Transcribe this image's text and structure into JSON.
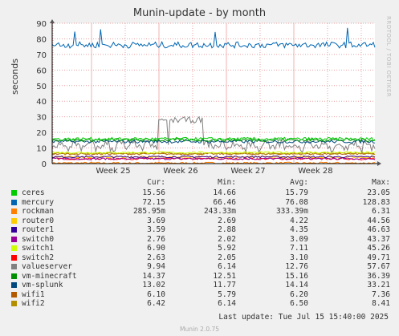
{
  "chart_data": {
    "type": "line",
    "title": "Munin-update - by month",
    "ylabel": "seconds",
    "ylim": [
      0,
      90
    ],
    "yticks": [
      0,
      10,
      20,
      30,
      40,
      50,
      60,
      70,
      80,
      90
    ],
    "xticks": [
      "Week 25",
      "Week 26",
      "Week 27",
      "Week 28"
    ],
    "grid": true,
    "legend_headers": [
      "Cur:",
      "Min:",
      "Avg:",
      "Max:"
    ],
    "series": [
      {
        "name": "ceres",
        "color": "#00cc00",
        "cur": "15.56",
        "min": "14.66",
        "avg": "15.79",
        "max": "23.05"
      },
      {
        "name": "mercury",
        "color": "#0066b3",
        "cur": "72.15",
        "min": "66.46",
        "avg": "76.08",
        "max": "128.83"
      },
      {
        "name": "rockman",
        "color": "#ff8000",
        "cur": "285.95m",
        "min": "243.33m",
        "avg": "333.39m",
        "max": "6.31"
      },
      {
        "name": "router0",
        "color": "#ffcc00",
        "cur": "3.69",
        "min": "2.69",
        "avg": "4.22",
        "max": "44.56"
      },
      {
        "name": "router1",
        "color": "#330099",
        "cur": "3.59",
        "min": "2.88",
        "avg": "4.35",
        "max": "46.63"
      },
      {
        "name": "switch0",
        "color": "#990099",
        "cur": "2.76",
        "min": "2.02",
        "avg": "3.09",
        "max": "43.37"
      },
      {
        "name": "switch1",
        "color": "#ccff00",
        "cur": "6.90",
        "min": "5.92",
        "avg": "7.11",
        "max": "45.26"
      },
      {
        "name": "switch2",
        "color": "#ff0000",
        "cur": "2.63",
        "min": "2.05",
        "avg": "3.10",
        "max": "49.71"
      },
      {
        "name": "valueserver",
        "color": "#808080",
        "cur": "9.94",
        "min": "6.14",
        "avg": "12.76",
        "max": "57.67"
      },
      {
        "name": "vm-minecraft",
        "color": "#008f00",
        "cur": "14.37",
        "min": "12.51",
        "avg": "15.16",
        "max": "36.39"
      },
      {
        "name": "vm-splunk",
        "color": "#00487d",
        "cur": "13.02",
        "min": "11.77",
        "avg": "14.14",
        "max": "33.21"
      },
      {
        "name": "wifi1",
        "color": "#b35a00",
        "cur": "6.10",
        "min": "5.79",
        "avg": "6.20",
        "max": "7.36"
      },
      {
        "name": "wifi2",
        "color": "#b38f00",
        "cur": "6.42",
        "min": "6.14",
        "avg": "6.50",
        "max": "8.41"
      }
    ]
  },
  "side_label": "RRDTOOL / TOBI OETIKER",
  "last_update": "Last update: Tue Jul 15 15:40:00 2025",
  "footer": "Munin 2.0.75"
}
